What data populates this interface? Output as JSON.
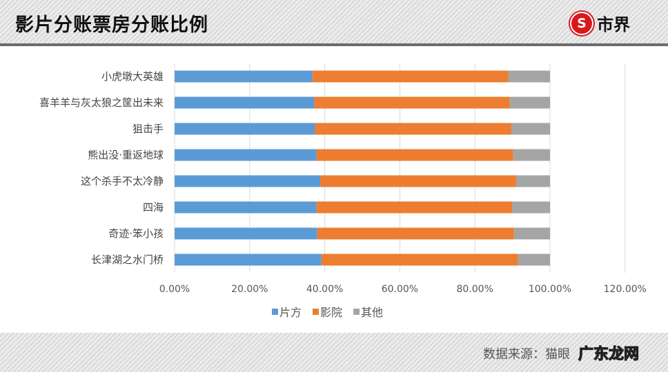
{
  "header": {
    "title": "影片分账票房分账比例",
    "logo_symbol": "S",
    "logo_text": "市界"
  },
  "footer": {
    "source": "数据来源：猫眼",
    "watermark": "广东龙网"
  },
  "colors": {
    "片方": "#5b9bd5",
    "影院": "#ed7d31",
    "其他": "#a5a5a5"
  },
  "chart_data": {
    "type": "bar",
    "orientation": "horizontal",
    "stacked": "100%",
    "categories": [
      "小虎墩大英雄",
      "喜羊羊与灰太狼之筐出未来",
      "狙击手",
      "熊出没·重返地球",
      "这个杀手不太冷静",
      "四海",
      "奇迹·笨小孩",
      "长津湖之水门桥"
    ],
    "series": [
      {
        "name": "片方",
        "values": [
          36.7,
          37.2,
          37.4,
          37.8,
          38.8,
          37.8,
          38.0,
          39.1
        ]
      },
      {
        "name": "影院",
        "values": [
          52.2,
          52.1,
          52.3,
          52.4,
          52.2,
          52.2,
          52.4,
          52.4
        ]
      },
      {
        "name": "其他",
        "values": [
          11.1,
          10.7,
          10.3,
          9.8,
          9.0,
          10.0,
          9.6,
          8.5
        ]
      }
    ],
    "xlim": [
      0,
      120
    ],
    "xticks": [
      "0.00%",
      "20.00%",
      "40.00%",
      "60.00%",
      "80.00%",
      "100.00%",
      "120.00%"
    ],
    "grid": true,
    "legend": "bottom"
  }
}
